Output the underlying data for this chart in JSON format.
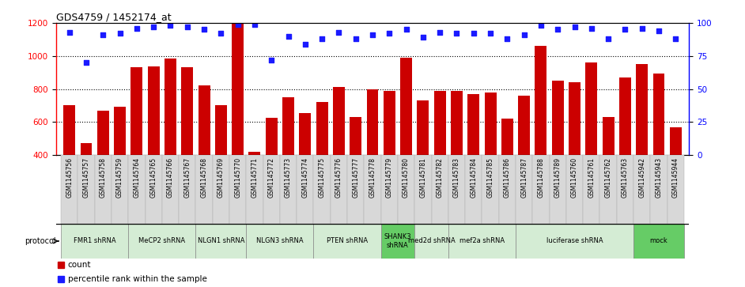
{
  "title": "GDS4759 / 1452174_at",
  "gsm_labels": [
    "GSM1145756",
    "GSM1145757",
    "GSM1145758",
    "GSM1145759",
    "GSM1145764",
    "GSM1145765",
    "GSM1145766",
    "GSM1145767",
    "GSM1145768",
    "GSM1145769",
    "GSM1145770",
    "GSM1145771",
    "GSM1145772",
    "GSM1145773",
    "GSM1145774",
    "GSM1145775",
    "GSM1145776",
    "GSM1145777",
    "GSM1145778",
    "GSM1145779",
    "GSM1145780",
    "GSM1145781",
    "GSM1145782",
    "GSM1145783",
    "GSM1145784",
    "GSM1145785",
    "GSM1145786",
    "GSM1145787",
    "GSM1145788",
    "GSM1145789",
    "GSM1145760",
    "GSM1145761",
    "GSM1145762",
    "GSM1145763",
    "GSM1145942",
    "GSM1145943",
    "GSM1145944"
  ],
  "counts": [
    700,
    470,
    670,
    690,
    930,
    935,
    985,
    930,
    820,
    700,
    1200,
    420,
    625,
    750,
    655,
    720,
    810,
    630,
    800,
    790,
    990,
    730,
    790,
    790,
    770,
    780,
    620,
    760,
    1060,
    850,
    840,
    960,
    630,
    870,
    950,
    895,
    570
  ],
  "percentiles": [
    93,
    70,
    91,
    92,
    96,
    97,
    98,
    97,
    95,
    92,
    99,
    99,
    72,
    90,
    84,
    88,
    93,
    88,
    91,
    92,
    95,
    89,
    93,
    92,
    92,
    92,
    88,
    91,
    98,
    95,
    97,
    96,
    88,
    95,
    96,
    94,
    88
  ],
  "ylim_left": [
    400,
    1200
  ],
  "ylim_right": [
    0,
    100
  ],
  "yticks_left": [
    400,
    600,
    800,
    1000,
    1200
  ],
  "yticks_right": [
    0,
    25,
    50,
    75,
    100
  ],
  "bar_color": "#CC0000",
  "dot_color": "#1a1aff",
  "protocol_groups": [
    {
      "label": "FMR1 shRNA",
      "start": 0,
      "end": 4,
      "color": "#d4ecd4"
    },
    {
      "label": "MeCP2 shRNA",
      "start": 4,
      "end": 8,
      "color": "#d4ecd4"
    },
    {
      "label": "NLGN1 shRNA",
      "start": 8,
      "end": 11,
      "color": "#d4ecd4"
    },
    {
      "label": "NLGN3 shRNA",
      "start": 11,
      "end": 15,
      "color": "#d4ecd4"
    },
    {
      "label": "PTEN shRNA",
      "start": 15,
      "end": 19,
      "color": "#d4ecd4"
    },
    {
      "label": "SHANK3\nshRNA",
      "start": 19,
      "end": 21,
      "color": "#66cc66"
    },
    {
      "label": "med2d shRNA",
      "start": 21,
      "end": 23,
      "color": "#d4ecd4"
    },
    {
      "label": "mef2a shRNA",
      "start": 23,
      "end": 27,
      "color": "#d4ecd4"
    },
    {
      "label": "luciferase shRNA",
      "start": 27,
      "end": 34,
      "color": "#d4ecd4"
    },
    {
      "label": "mock",
      "start": 34,
      "end": 37,
      "color": "#66cc66"
    }
  ],
  "legend_items": [
    {
      "color": "#CC0000",
      "label": "count"
    },
    {
      "color": "#1a1aff",
      "label": "percentile rank within the sample"
    }
  ],
  "xtick_bg": "#d8d8d8"
}
